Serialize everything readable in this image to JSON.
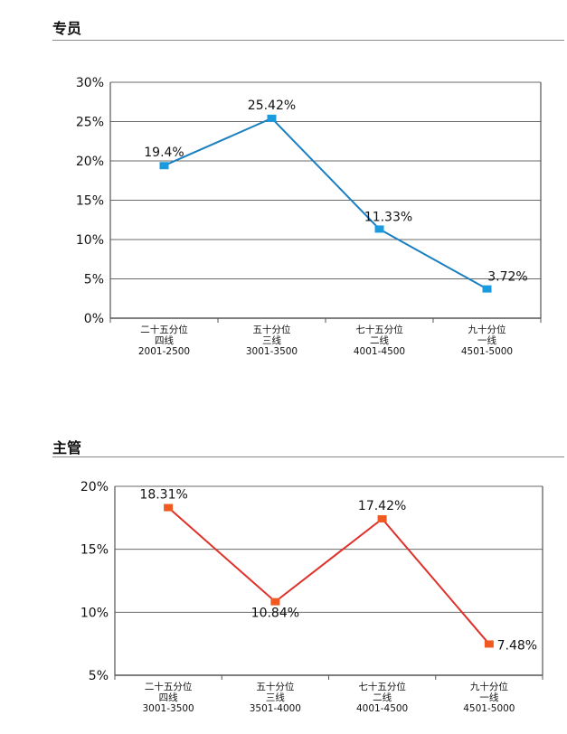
{
  "sections": [
    {
      "title": "专员"
    },
    {
      "title": "主管"
    }
  ],
  "chart_data": [
    {
      "type": "line",
      "title": "专员",
      "categories": [
        [
          "二十五分位",
          "四线",
          "2001-2500"
        ],
        [
          "五十分位",
          "三线",
          "3001-3500"
        ],
        [
          "七十五分位",
          "二线",
          "4001-4500"
        ],
        [
          "九十分位",
          "一线",
          "4501-5000"
        ]
      ],
      "values": [
        19.4,
        25.42,
        11.33,
        3.72
      ],
      "value_labels": [
        "19.4%",
        "25.42%",
        "11.33%",
        "3.72%"
      ],
      "y_ticks": [
        0,
        5,
        10,
        15,
        20,
        25,
        30
      ],
      "y_tick_labels": [
        "0%",
        "5%",
        "10%",
        "15%",
        "20%",
        "25%",
        "30%"
      ],
      "ylim": [
        0,
        30
      ],
      "line_color": "#1a7fc0",
      "marker_color": "#1a9be0",
      "grid": true
    },
    {
      "type": "line",
      "title": "主管",
      "categories": [
        [
          "二十五分位",
          "四线",
          "3001-3500"
        ],
        [
          "五十分位",
          "三线",
          "3501-4000"
        ],
        [
          "七十五分位",
          "二线",
          "4001-4500"
        ],
        [
          "九十分位",
          "一线",
          "4501-5000"
        ]
      ],
      "values": [
        18.31,
        10.84,
        17.42,
        7.48
      ],
      "value_labels": [
        "18.31%",
        "10.84%",
        "17.42%",
        "7.48%"
      ],
      "y_ticks": [
        5,
        10,
        15,
        20
      ],
      "y_tick_labels": [
        "5%",
        "10%",
        "15%",
        "20%"
      ],
      "ylim": [
        5,
        20
      ],
      "line_color": "#e0302a",
      "marker_color": "#f05a22",
      "grid": true
    }
  ]
}
